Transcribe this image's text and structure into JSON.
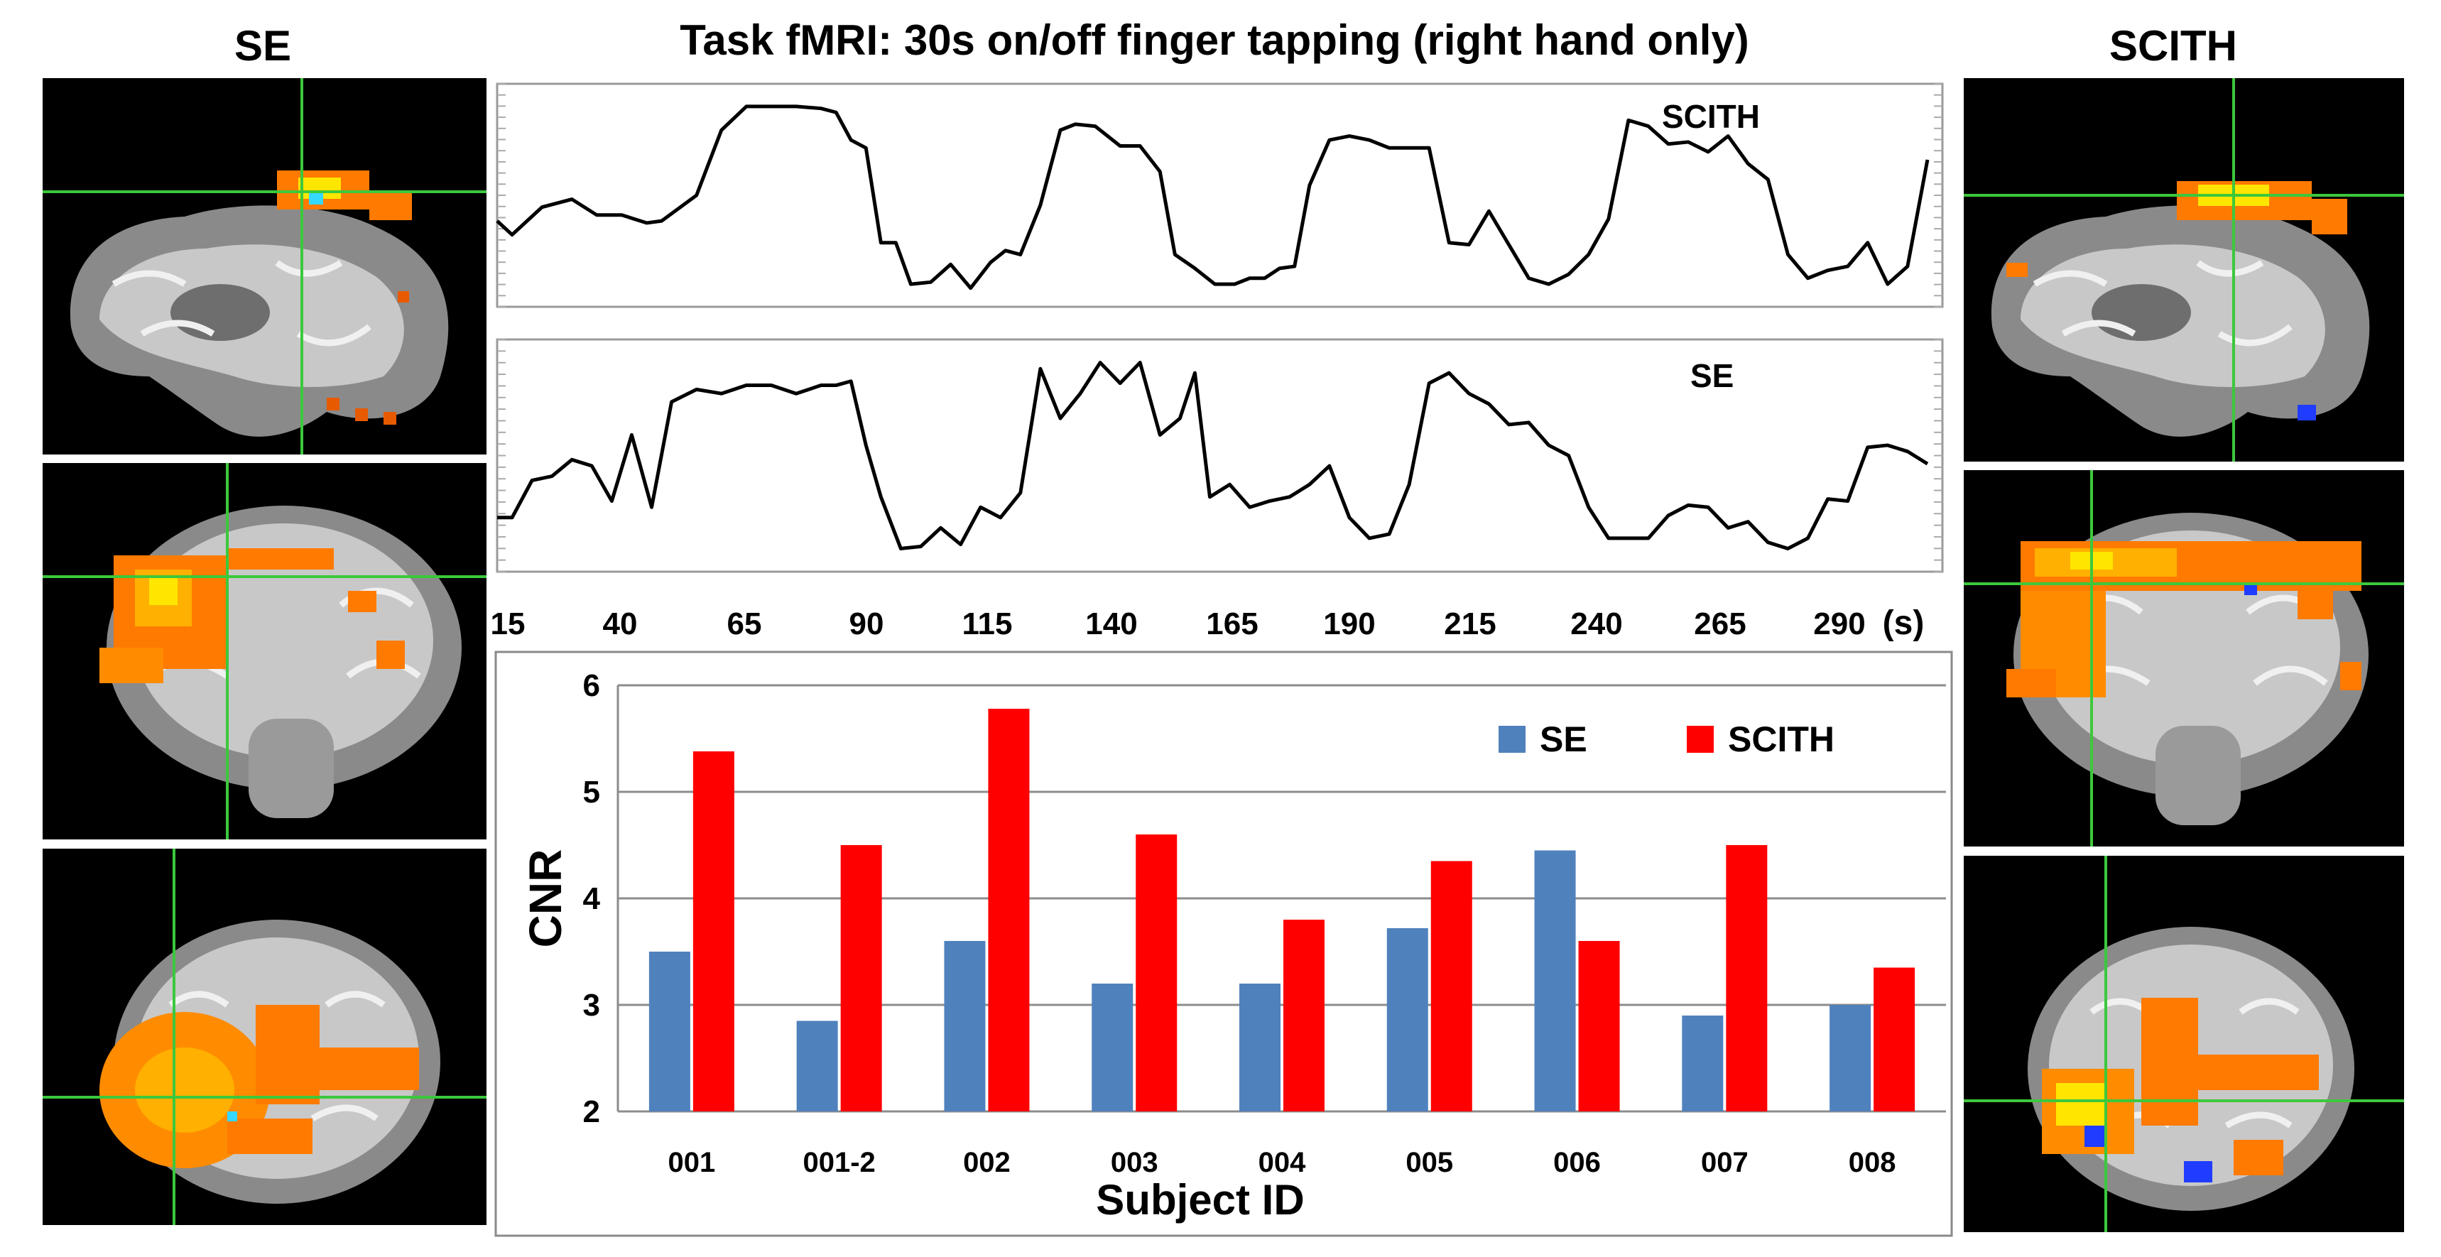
{
  "figure": {
    "title": "Task fMRI: 30s on/off finger tapping (right hand only)",
    "left_label": "SE",
    "right_label": "SCITH"
  },
  "brain_panels": {
    "left": [
      {
        "view": "sagittal",
        "icon": "brain-sagittal-activation-map"
      },
      {
        "view": "coronal",
        "icon": "brain-coronal-activation-map"
      },
      {
        "view": "axial",
        "icon": "brain-axial-activation-map"
      }
    ],
    "right": [
      {
        "view": "sagittal",
        "icon": "brain-sagittal-activation-map"
      },
      {
        "view": "coronal",
        "icon": "brain-coronal-activation-map"
      },
      {
        "view": "axial",
        "icon": "brain-axial-activation-map"
      }
    ],
    "colors": {
      "crosshair": "#3cc83c",
      "activation_hot": "#ff7a00",
      "activation_peak": "#ffe600",
      "deactivation": "#1f3cff",
      "cyan": "#35d8ff"
    }
  },
  "chart_data": [
    {
      "type": "line",
      "x_tick_labels": [
        "15",
        "40",
        "65",
        "90",
        "115",
        "140",
        "165",
        "190",
        "215",
        "240",
        "265",
        "290"
      ],
      "x_unit": "(s)",
      "xlim": [
        15,
        305
      ],
      "ylim": [
        0,
        1
      ],
      "series": [
        {
          "name": "SCITH",
          "x": [
            15,
            18,
            24,
            30,
            35,
            40,
            45,
            48,
            55,
            60,
            65,
            70,
            75,
            80,
            83,
            86,
            89,
            92,
            95,
            98,
            102,
            106,
            110,
            114,
            117,
            120,
            124,
            128,
            131,
            135,
            140,
            144,
            148,
            151,
            155,
            159,
            163,
            166,
            169,
            172,
            175,
            178,
            182,
            186,
            190,
            194,
            198,
            202,
            206,
            210,
            214,
            218,
            222,
            226,
            230,
            234,
            238,
            242,
            246,
            250,
            254,
            258,
            262,
            266,
            270,
            274,
            278,
            282,
            286,
            290,
            294,
            298,
            302
          ],
          "y": [
            0.37,
            0.3,
            0.44,
            0.48,
            0.4,
            0.4,
            0.36,
            0.37,
            0.5,
            0.83,
            0.95,
            0.95,
            0.95,
            0.94,
            0.92,
            0.78,
            0.74,
            0.26,
            0.26,
            0.05,
            0.06,
            0.15,
            0.03,
            0.16,
            0.22,
            0.2,
            0.45,
            0.83,
            0.86,
            0.85,
            0.75,
            0.75,
            0.62,
            0.2,
            0.13,
            0.05,
            0.05,
            0.08,
            0.08,
            0.13,
            0.14,
            0.55,
            0.78,
            0.8,
            0.78,
            0.74,
            0.74,
            0.74,
            0.26,
            0.25,
            0.42,
            0.25,
            0.08,
            0.05,
            0.1,
            0.2,
            0.38,
            0.88,
            0.85,
            0.76,
            0.77,
            0.72,
            0.8,
            0.66,
            0.58,
            0.2,
            0.08,
            0.12,
            0.14,
            0.26,
            0.05,
            0.14,
            0.68
          ]
        },
        {
          "name": "SE",
          "x": [
            15,
            18,
            22,
            26,
            30,
            34,
            38,
            42,
            46,
            50,
            55,
            60,
            65,
            70,
            75,
            80,
            83,
            86,
            89,
            92,
            96,
            100,
            104,
            108,
            112,
            116,
            120,
            124,
            128,
            132,
            136,
            140,
            144,
            148,
            152,
            155,
            158,
            162,
            166,
            170,
            174,
            178,
            182,
            186,
            190,
            194,
            198,
            202,
            206,
            210,
            214,
            218,
            222,
            226,
            230,
            234,
            238,
            242,
            246,
            250,
            254,
            258,
            262,
            266,
            270,
            274,
            278,
            282,
            286,
            290,
            294,
            298,
            302
          ],
          "y": [
            0.2,
            0.2,
            0.38,
            0.4,
            0.48,
            0.45,
            0.28,
            0.6,
            0.25,
            0.76,
            0.82,
            0.8,
            0.84,
            0.84,
            0.8,
            0.84,
            0.84,
            0.86,
            0.55,
            0.3,
            0.05,
            0.06,
            0.15,
            0.07,
            0.25,
            0.2,
            0.32,
            0.92,
            0.68,
            0.8,
            0.95,
            0.85,
            0.95,
            0.6,
            0.68,
            0.9,
            0.3,
            0.36,
            0.25,
            0.28,
            0.3,
            0.36,
            0.45,
            0.2,
            0.1,
            0.12,
            0.36,
            0.85,
            0.9,
            0.8,
            0.75,
            0.65,
            0.66,
            0.55,
            0.5,
            0.25,
            0.1,
            0.1,
            0.1,
            0.21,
            0.26,
            0.25,
            0.15,
            0.18,
            0.08,
            0.05,
            0.1,
            0.29,
            0.28,
            0.54,
            0.55,
            0.52,
            0.46
          ]
        }
      ]
    },
    {
      "type": "bar",
      "title": "",
      "xlabel": "Subject ID",
      "ylabel": "CNR",
      "ylim": [
        2,
        6
      ],
      "y_ticks": [
        "2",
        "3",
        "4",
        "5",
        "6"
      ],
      "categories": [
        "001",
        "001-2",
        "002",
        "003",
        "004",
        "005",
        "006",
        "007",
        "008"
      ],
      "legend_position": "top-right",
      "grid": true,
      "series": [
        {
          "name": "SE",
          "color": "#4f81bd",
          "values": [
            3.5,
            2.85,
            3.6,
            3.2,
            3.2,
            3.72,
            4.45,
            2.9,
            3.0
          ]
        },
        {
          "name": "SCITH",
          "color": "#ff0000",
          "values": [
            5.38,
            4.5,
            5.78,
            4.6,
            3.8,
            4.35,
            3.6,
            4.5,
            3.35
          ]
        }
      ]
    }
  ]
}
